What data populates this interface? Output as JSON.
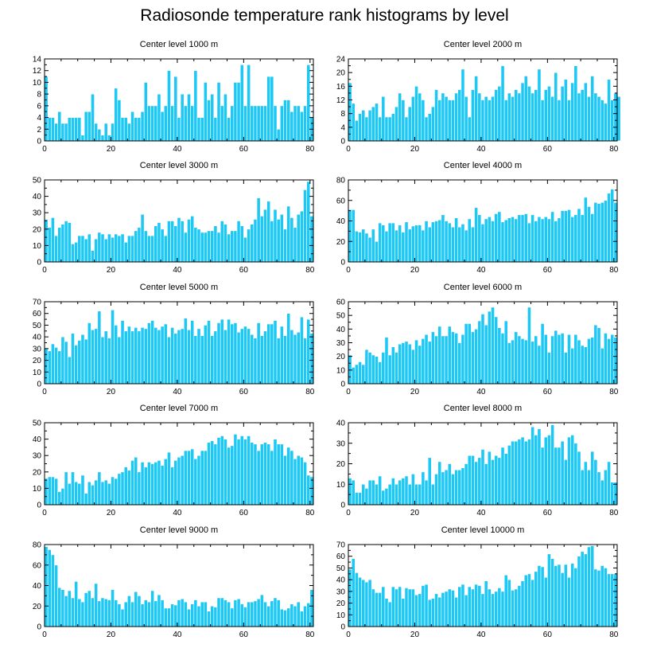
{
  "page": {
    "title": "Radiosonde temperature rank histograms by level"
  },
  "colors": {
    "bar": "#1ec8f5",
    "bar_edge": "#ffffff",
    "axis": "#000000"
  },
  "chart_data": [
    {
      "type": "bar",
      "title": "Center level 1000 m",
      "xlabel": "",
      "ylabel": "",
      "xlim": [
        0,
        81
      ],
      "xticks": [
        0,
        20,
        40,
        60,
        80
      ],
      "ylim": [
        0,
        14
      ],
      "yticks": [
        0,
        2,
        4,
        6,
        8,
        10,
        12,
        14
      ],
      "values": [
        11,
        4,
        4,
        3,
        5,
        3,
        3,
        4,
        4,
        4,
        4,
        1,
        5,
        5,
        8,
        3,
        2,
        1,
        3,
        1,
        3,
        9,
        7,
        4,
        4,
        3,
        5,
        4,
        4,
        5,
        10,
        6,
        6,
        6,
        8,
        5,
        6,
        12,
        6,
        11,
        4,
        8,
        6,
        8,
        6,
        12,
        4,
        4,
        10,
        7,
        8,
        4,
        10,
        6,
        8,
        4,
        6,
        10,
        10,
        13,
        6,
        13,
        6,
        6,
        6,
        6,
        6,
        11,
        11,
        6,
        2,
        6,
        7,
        7,
        5,
        6,
        6,
        5,
        6,
        13,
        4
      ]
    },
    {
      "type": "bar",
      "title": "Center level 2000 m",
      "xlabel": "",
      "ylabel": "",
      "xlim": [
        0,
        81
      ],
      "xticks": [
        0,
        20,
        40,
        60,
        80
      ],
      "ylim": [
        0,
        24
      ],
      "yticks": [
        0,
        4,
        8,
        12,
        16,
        20,
        24
      ],
      "values": [
        17,
        11,
        6,
        8,
        9,
        7,
        9,
        10,
        11,
        7,
        13,
        7,
        7,
        8,
        10,
        14,
        12,
        7,
        10,
        13,
        16,
        14,
        12,
        7,
        8,
        10,
        15,
        12,
        14,
        13,
        12,
        12,
        14,
        15,
        21,
        13,
        7,
        15,
        19,
        14,
        12,
        13,
        12,
        13,
        15,
        16,
        22,
        12,
        14,
        13,
        15,
        14,
        17,
        19,
        16,
        14,
        15,
        21,
        12,
        15,
        16,
        13,
        20,
        12,
        16,
        18,
        12,
        17,
        22,
        14,
        15,
        17,
        13,
        19,
        14,
        13,
        12,
        11,
        18,
        12,
        14,
        13
      ]
    },
    {
      "type": "bar",
      "title": "Center level 3000 m",
      "xlabel": "",
      "ylabel": "",
      "xlim": [
        0,
        81
      ],
      "xticks": [
        0,
        20,
        40,
        60,
        80
      ],
      "ylim": [
        0,
        50
      ],
      "yticks": [
        0,
        10,
        20,
        30,
        40,
        50
      ],
      "values": [
        26,
        21,
        27,
        16,
        21,
        23,
        25,
        24,
        11,
        12,
        16,
        16,
        14,
        17,
        7,
        14,
        18,
        17,
        14,
        17,
        15,
        17,
        16,
        17,
        12,
        16,
        16,
        19,
        21,
        29,
        19,
        16,
        16,
        22,
        24,
        20,
        16,
        25,
        25,
        22,
        27,
        25,
        18,
        26,
        28,
        21,
        20,
        18,
        18,
        19,
        19,
        22,
        18,
        25,
        23,
        17,
        19,
        19,
        25,
        22,
        15,
        20,
        23,
        26,
        39,
        28,
        32,
        37,
        25,
        32,
        26,
        29,
        20,
        34,
        27,
        21,
        29,
        31,
        44,
        49,
        28
      ]
    },
    {
      "type": "bar",
      "title": "Center level 4000 m",
      "xlabel": "",
      "ylabel": "",
      "xlim": [
        0,
        81
      ],
      "xticks": [
        0,
        20,
        40,
        60,
        80
      ],
      "ylim": [
        0,
        80
      ],
      "yticks": [
        0,
        20,
        40,
        60,
        80
      ],
      "values": [
        51,
        51,
        30,
        29,
        32,
        28,
        24,
        32,
        20,
        38,
        36,
        30,
        38,
        38,
        31,
        36,
        29,
        39,
        32,
        35,
        36,
        36,
        31,
        40,
        34,
        39,
        40,
        41,
        46,
        40,
        38,
        34,
        43,
        34,
        37,
        31,
        42,
        34,
        53,
        46,
        37,
        42,
        44,
        40,
        47,
        49,
        39,
        41,
        43,
        44,
        42,
        46,
        46,
        47,
        38,
        46,
        40,
        44,
        42,
        44,
        42,
        49,
        40,
        43,
        50,
        50,
        51,
        44,
        46,
        52,
        46,
        63,
        54,
        47,
        58,
        57,
        58,
        60,
        67,
        71,
        58
      ]
    },
    {
      "type": "bar",
      "title": "Center level 5000 m",
      "xlabel": "",
      "ylabel": "",
      "xlim": [
        0,
        81
      ],
      "xticks": [
        0,
        20,
        40,
        60,
        80
      ],
      "ylim": [
        0,
        70
      ],
      "yticks": [
        0,
        10,
        20,
        30,
        40,
        50,
        60,
        70
      ],
      "values": [
        30,
        28,
        34,
        31,
        28,
        40,
        36,
        23,
        43,
        33,
        37,
        42,
        38,
        52,
        46,
        47,
        62,
        40,
        45,
        39,
        63,
        50,
        40,
        54,
        45,
        49,
        45,
        48,
        45,
        48,
        47,
        52,
        54,
        48,
        46,
        49,
        51,
        40,
        48,
        43,
        46,
        47,
        56,
        46,
        54,
        41,
        47,
        41,
        50,
        54,
        41,
        45,
        52,
        55,
        46,
        55,
        51,
        52,
        44,
        47,
        49,
        47,
        42,
        39,
        52,
        41,
        45,
        51,
        51,
        54,
        39,
        49,
        41,
        60,
        46,
        42,
        44,
        57,
        39,
        55,
        43
      ]
    },
    {
      "type": "bar",
      "title": "Center level 6000 m",
      "xlabel": "",
      "ylabel": "",
      "xlim": [
        0,
        81
      ],
      "xticks": [
        0,
        20,
        40,
        60,
        80
      ],
      "ylim": [
        0,
        60
      ],
      "yticks": [
        0,
        10,
        20,
        30,
        40,
        50,
        60
      ],
      "values": [
        21,
        12,
        14,
        16,
        14,
        25,
        23,
        21,
        20,
        16,
        23,
        34,
        21,
        27,
        23,
        29,
        30,
        31,
        29,
        25,
        32,
        28,
        33,
        36,
        31,
        38,
        35,
        42,
        35,
        35,
        42,
        38,
        37,
        30,
        36,
        44,
        44,
        38,
        40,
        46,
        51,
        43,
        53,
        56,
        49,
        41,
        37,
        46,
        30,
        32,
        38,
        35,
        33,
        32,
        56,
        31,
        35,
        28,
        44,
        36,
        23,
        35,
        39,
        36,
        37,
        23,
        36,
        26,
        36,
        32,
        28,
        27,
        33,
        34,
        43,
        41,
        26,
        37,
        33,
        36,
        34
      ]
    },
    {
      "type": "bar",
      "title": "Center level 7000 m",
      "xlabel": "",
      "ylabel": "",
      "xlim": [
        0,
        81
      ],
      "xticks": [
        0,
        20,
        40,
        60,
        80
      ],
      "ylim": [
        0,
        50
      ],
      "yticks": [
        0,
        10,
        20,
        30,
        40,
        50
      ],
      "values": [
        16,
        17,
        17,
        16,
        8,
        10,
        20,
        13,
        20,
        14,
        13,
        18,
        7,
        14,
        12,
        15,
        20,
        14,
        15,
        13,
        17,
        16,
        19,
        20,
        23,
        21,
        27,
        29,
        20,
        26,
        23,
        26,
        25,
        26,
        27,
        24,
        28,
        32,
        23,
        27,
        29,
        30,
        33,
        33,
        34,
        28,
        30,
        33,
        33,
        38,
        39,
        37,
        41,
        42,
        40,
        35,
        36,
        43,
        40,
        42,
        40,
        42,
        38,
        37,
        33,
        37,
        38,
        37,
        33,
        40,
        37,
        37,
        30,
        35,
        33,
        28,
        30,
        29,
        26,
        18,
        17
      ]
    },
    {
      "type": "bar",
      "title": "Center level 8000 m",
      "xlabel": "",
      "ylabel": "",
      "xlim": [
        0,
        81
      ],
      "xticks": [
        0,
        20,
        40,
        60,
        80
      ],
      "ylim": [
        0,
        40
      ],
      "yticks": [
        0,
        10,
        20,
        30,
        40
      ],
      "values": [
        13,
        12,
        6,
        6,
        10,
        8,
        12,
        12,
        10,
        14,
        7,
        8,
        10,
        13,
        10,
        12,
        13,
        14,
        10,
        15,
        10,
        10,
        16,
        12,
        23,
        10,
        15,
        21,
        16,
        17,
        20,
        15,
        17,
        17,
        18,
        20,
        24,
        24,
        21,
        23,
        27,
        20,
        26,
        22,
        24,
        23,
        28,
        25,
        29,
        31,
        31,
        32,
        33,
        31,
        32,
        38,
        34,
        37,
        28,
        33,
        34,
        39,
        28,
        28,
        31,
        22,
        33,
        34,
        30,
        26,
        17,
        21,
        17,
        26,
        22,
        16,
        12,
        17,
        21,
        11,
        11
      ]
    },
    {
      "type": "bar",
      "title": "Center level 9000 m",
      "xlabel": "",
      "ylabel": "",
      "xlim": [
        0,
        81
      ],
      "xticks": [
        0,
        20,
        40,
        60,
        80
      ],
      "ylim": [
        0,
        80
      ],
      "yticks": [
        0,
        20,
        40,
        60,
        80
      ],
      "values": [
        78,
        75,
        70,
        60,
        38,
        36,
        30,
        35,
        28,
        44,
        27,
        24,
        33,
        35,
        28,
        42,
        25,
        28,
        27,
        26,
        36,
        26,
        22,
        17,
        24,
        30,
        24,
        34,
        30,
        22,
        26,
        24,
        35,
        25,
        31,
        26,
        18,
        18,
        22,
        21,
        26,
        27,
        24,
        17,
        22,
        26,
        20,
        24,
        24,
        15,
        20,
        19,
        28,
        28,
        26,
        24,
        18,
        26,
        27,
        22,
        19,
        24,
        24,
        25,
        27,
        31,
        24,
        20,
        25,
        28,
        26,
        17,
        16,
        18,
        22,
        20,
        24,
        15,
        20,
        23,
        36
      ]
    },
    {
      "type": "bar",
      "title": "Center level 10000 m",
      "xlabel": "",
      "ylabel": "",
      "xlim": [
        0,
        81
      ],
      "xticks": [
        0,
        20,
        40,
        60,
        80
      ],
      "ylim": [
        0,
        70
      ],
      "yticks": [
        0,
        10,
        20,
        30,
        40,
        50,
        60,
        70
      ],
      "values": [
        49,
        58,
        46,
        42,
        40,
        38,
        40,
        32,
        29,
        29,
        34,
        24,
        21,
        34,
        32,
        34,
        24,
        33,
        32,
        32,
        27,
        28,
        35,
        36,
        23,
        24,
        28,
        25,
        29,
        30,
        32,
        31,
        25,
        34,
        36,
        27,
        34,
        32,
        36,
        35,
        28,
        39,
        32,
        28,
        30,
        33,
        30,
        44,
        40,
        31,
        32,
        35,
        39,
        44,
        45,
        40,
        47,
        52,
        51,
        42,
        62,
        58,
        52,
        53,
        46,
        53,
        42,
        54,
        50,
        60,
        64,
        62,
        68,
        69,
        49,
        48,
        52,
        50,
        45,
        45,
        45
      ]
    }
  ]
}
